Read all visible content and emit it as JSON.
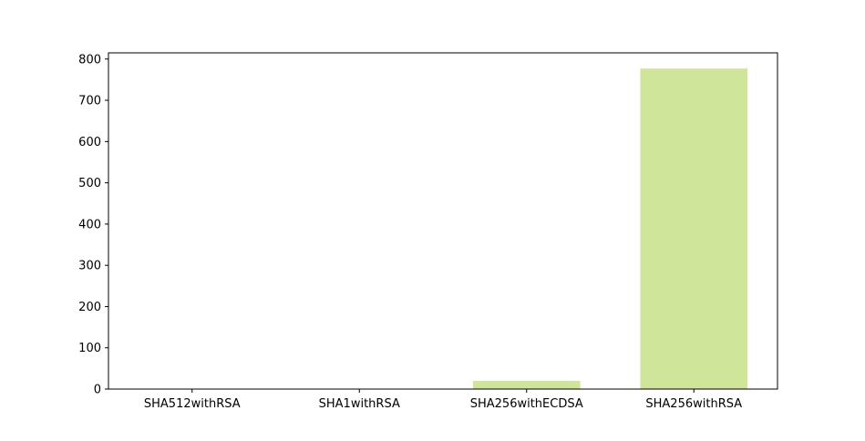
{
  "chart_data": {
    "type": "bar",
    "title": "",
    "xlabel": "",
    "ylabel": "",
    "categories": [
      "SHA512withRSA",
      "SHA1withRSA",
      "SHA256withECDSA",
      "SHA256withRSA"
    ],
    "values": [
      1,
      1,
      20,
      777
    ],
    "ylim": [
      0,
      815
    ],
    "yticks": [
      0,
      100,
      200,
      300,
      400,
      500,
      600,
      700,
      800
    ],
    "grid": false,
    "legend": "none",
    "bar_color": "#cfe59a"
  }
}
